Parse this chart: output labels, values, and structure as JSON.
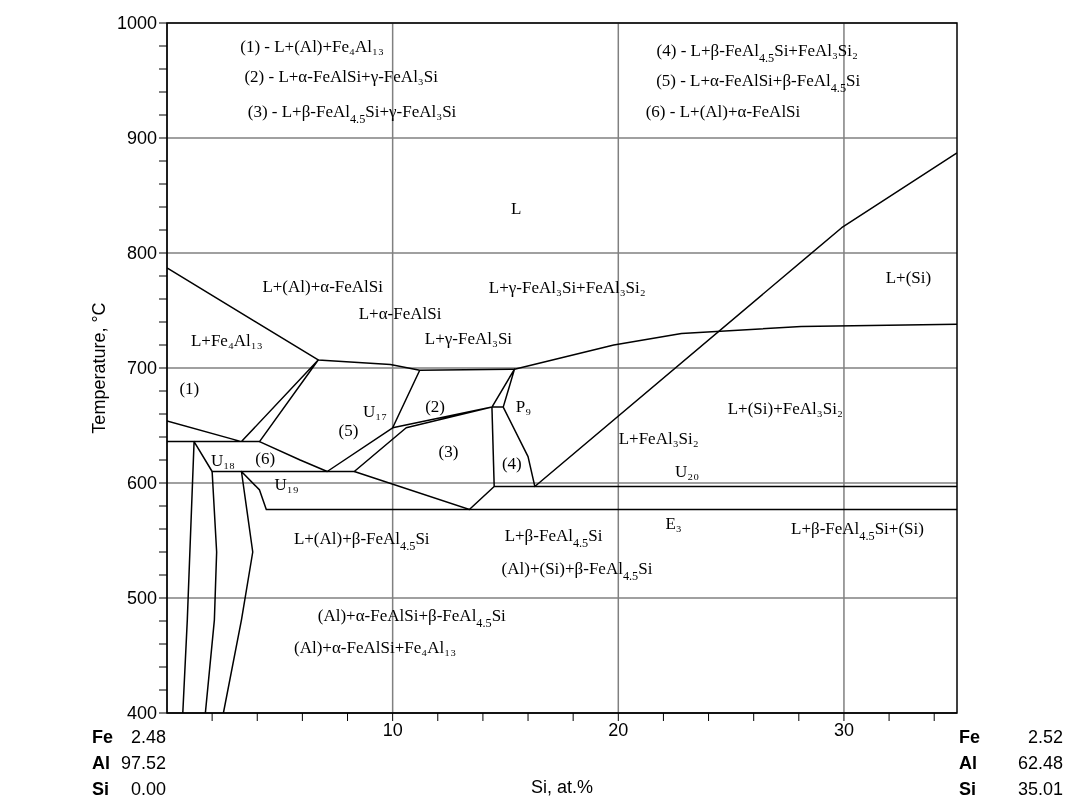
{
  "chart_data": {
    "type": "line",
    "xlabel": "Si, at.%",
    "ylabel": "Temperature, °C",
    "xlim": [
      0,
      35.01
    ],
    "ylim": [
      400,
      1000
    ],
    "xticks": [
      {
        "value": 2,
        "label": null
      },
      {
        "value": 4,
        "label": null
      },
      {
        "value": 6,
        "label": null
      },
      {
        "value": 8,
        "label": null
      },
      10,
      {
        "value": 12,
        "label": null
      },
      {
        "value": 14,
        "label": null
      },
      {
        "value": 16,
        "label": null
      },
      {
        "value": 18,
        "label": null
      },
      20,
      {
        "value": 22,
        "label": null
      },
      {
        "value": 24,
        "label": null
      },
      {
        "value": 26,
        "label": null
      },
      {
        "value": 28,
        "label": null
      },
      30,
      {
        "value": 32,
        "label": null
      },
      {
        "value": 34,
        "label": null
      }
    ],
    "yticks": [
      400,
      {
        "value": 420,
        "label": null
      },
      {
        "value": 440,
        "label": null
      },
      {
        "value": 460,
        "label": null
      },
      {
        "value": 480,
        "label": null
      },
      500,
      {
        "value": 520,
        "label": null
      },
      {
        "value": 540,
        "label": null
      },
      {
        "value": 560,
        "label": null
      },
      {
        "value": 580,
        "label": null
      },
      600,
      {
        "value": 620,
        "label": null
      },
      {
        "value": 640,
        "label": null
      },
      {
        "value": 660,
        "label": null
      },
      {
        "value": 680,
        "label": null
      },
      700,
      {
        "value": 720,
        "label": null
      },
      {
        "value": 740,
        "label": null
      },
      {
        "value": 760,
        "label": null
      },
      {
        "value": 780,
        "label": null
      },
      800,
      {
        "value": 820,
        "label": null
      },
      {
        "value": 840,
        "label": null
      },
      {
        "value": 860,
        "label": null
      },
      {
        "value": 880,
        "label": null
      },
      900,
      {
        "value": 920,
        "label": null
      },
      {
        "value": 940,
        "label": null
      },
      {
        "value": 960,
        "label": null
      },
      {
        "value": 980,
        "label": null
      },
      1000
    ],
    "grid": true,
    "series": [
      {
        "color": "#000000",
        "x": [
          0,
          6.7,
          9.9,
          11.2,
          15.4,
          19.8,
          22.8,
          28.1,
          35.01
        ],
        "values": [
          787,
          707,
          703,
          698,
          699,
          720,
          730,
          736,
          738
        ]
      },
      {
        "color": "#000000",
        "x": [
          0,
          3.3,
          6.7,
          4.1,
          0
        ],
        "values": [
          654,
          636,
          707,
          636,
          636
        ]
      },
      {
        "color": "#000000",
        "x": [
          4.1,
          5.9,
          7.1,
          10,
          11.2
        ],
        "values": [
          636,
          620,
          610,
          648,
          698
        ]
      },
      {
        "color": "#000000",
        "x": [
          10,
          14.4,
          15.4,
          14.9,
          14.4,
          10.6,
          8.3,
          2,
          1.2,
          1,
          0.9,
          0.7
        ],
        "values": [
          648,
          666,
          699,
          666,
          666,
          648,
          610,
          610,
          636,
          533,
          481,
          400
        ]
      },
      {
        "color": "#000000",
        "x": [
          14.9,
          16,
          16.3,
          29.9,
          35.01
        ],
        "values": [
          666,
          623,
          597,
          822,
          887
        ]
      },
      {
        "color": "#000000",
        "x": [
          8.3,
          13.4,
          14.5,
          35.01
        ],
        "values": [
          610,
          577,
          597,
          597
        ]
      },
      {
        "color": "#000000",
        "x": [
          14.5,
          14.4
        ],
        "values": [
          597,
          666
        ]
      },
      {
        "color": "#000000",
        "x": [
          2.5,
          3.3,
          3.8,
          3.3,
          4.1,
          4.4,
          35.01
        ],
        "values": [
          400,
          481,
          540,
          610,
          594,
          577,
          577
        ]
      },
      {
        "color": "#000000",
        "x": [
          1.7,
          2.1,
          2.2,
          2
        ],
        "values": [
          400,
          481,
          540,
          610
        ]
      }
    ],
    "annotations": [
      "(1) - L+(Al)+Fe₄Al₁₃",
      "(2) - L+α-FeAlSi+γ-FeAl₃Si",
      "(3) - L+β-FeAl$_{4.5}$Si+γ-FeAl₃Si",
      "(4) - L+β-FeAl$_{4.5}$Si+FeAl₃Si₂",
      "(5) - L+α-FeAlSi+β-FeAl$_{4.5}$Si",
      "(6) - L+(Al)+α-FeAlSi",
      "L",
      "L+(Al)+α-FeAlSi",
      "L+α-FeAlSi",
      "L+Fe₄Al₁₃",
      "L+γ-FeAl₃Si",
      "L+γ-FeAl₃Si+FeAl₃Si₂",
      "L+(Si)",
      "(1)",
      "U₁₈",
      "(6)",
      "U₁₉",
      "(5)",
      "U₁₇",
      "(2)",
      "(3)",
      "P₉",
      "(4)",
      "L+FeAl₃Si₂",
      "U₂₀",
      "E₃",
      "L+(Si)+FeAl₃Si₂",
      "L+β-FeAl$_{4.5}$Si+(Si)",
      "L+(Al)+β-FeAl$_{4.5}$Si",
      "L+β-FeAl$_{4.5}$Si",
      "(Al)+(Si)+β-FeAl$_{4.5}$Si",
      "(Al)+α-FeAlSi+β-FeAl$_{4.5}$Si",
      "(Al)+α-FeAlSi+Fe₄Al₁₃",
      "Fe 2.48",
      "Al 97.52",
      "Si 0.00",
      "Fe 2.52",
      "Al 62.48",
      "Si 35.01"
    ]
  }
}
